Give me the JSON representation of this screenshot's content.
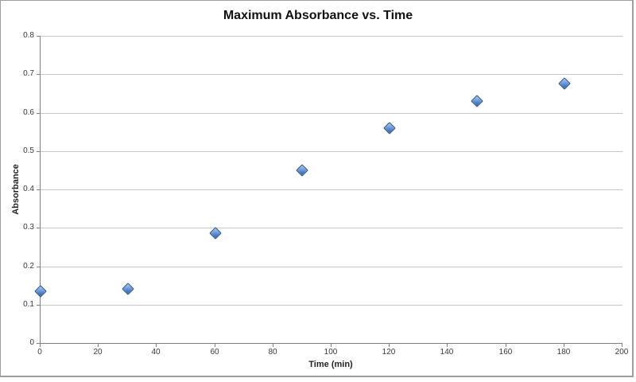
{
  "chart_data": {
    "type": "scatter",
    "title": "Maximum Absorbance vs. Time",
    "xlabel": "Time (min)",
    "ylabel": "Absorbance",
    "series": [
      {
        "name": "Maximum Absorbance",
        "marker": "diamond",
        "x": [
          0,
          30,
          60,
          90,
          120,
          150,
          180
        ],
        "y": [
          0.135,
          0.14,
          0.285,
          0.45,
          0.56,
          0.63,
          0.675
        ]
      }
    ],
    "xlim": [
      0,
      200
    ],
    "ylim": [
      0,
      0.8
    ],
    "x_ticks": [
      0,
      20,
      40,
      60,
      80,
      100,
      120,
      140,
      160,
      180,
      200
    ],
    "y_ticks": [
      0,
      0.1,
      0.2,
      0.3,
      0.4,
      0.5,
      0.6,
      0.7,
      0.8
    ],
    "grid": "horizontal-on",
    "legend_position": "none",
    "colors": {
      "marker_fill": "#5b8bd5",
      "marker_fill_highlight": "#aac8ee",
      "marker_border": "#2b5182",
      "gridline": "#c6c6c6",
      "axis_line": "#7f7f7f",
      "tick_label": "#383838",
      "title_text": "#111111",
      "background": "#ffffff",
      "chart_border": "#9d9d9d"
    }
  }
}
